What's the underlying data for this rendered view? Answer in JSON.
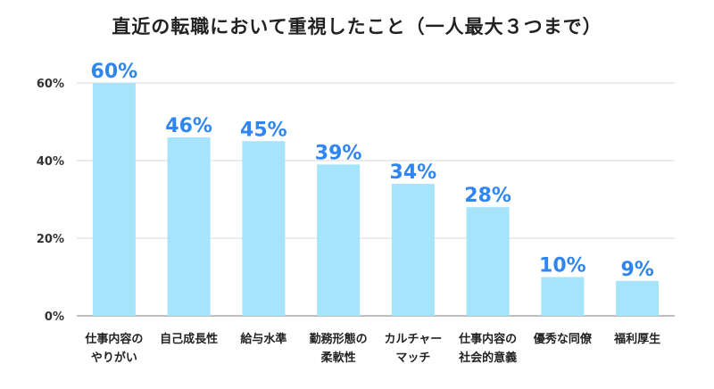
{
  "chart_data": {
    "type": "bar",
    "title": "直近の転職において重視したこと（一人最大３つまで）",
    "categories": [
      [
        "仕事内容の",
        "やりがい"
      ],
      [
        "自己成長性"
      ],
      [
        "給与水準"
      ],
      [
        "勤務形態の",
        "柔軟性"
      ],
      [
        "カルチャー",
        "マッチ"
      ],
      [
        "仕事内容の",
        "社会的意義"
      ],
      [
        "優秀な同僚"
      ],
      [
        "福利厚生"
      ]
    ],
    "values": [
      60,
      46,
      45,
      39,
      34,
      28,
      10,
      9
    ],
    "data_labels": [
      "60%",
      "46%",
      "45%",
      "39%",
      "34%",
      "28%",
      "10%",
      "9%"
    ],
    "yticks": [
      "0%",
      "20%",
      "40%",
      "60%"
    ],
    "ylim": [
      0,
      60
    ],
    "grid": true,
    "colors": {
      "bar": "#a5e4fa",
      "label": "#2f86f0",
      "grid": "#d8d8d8",
      "axis": "#999999"
    }
  }
}
